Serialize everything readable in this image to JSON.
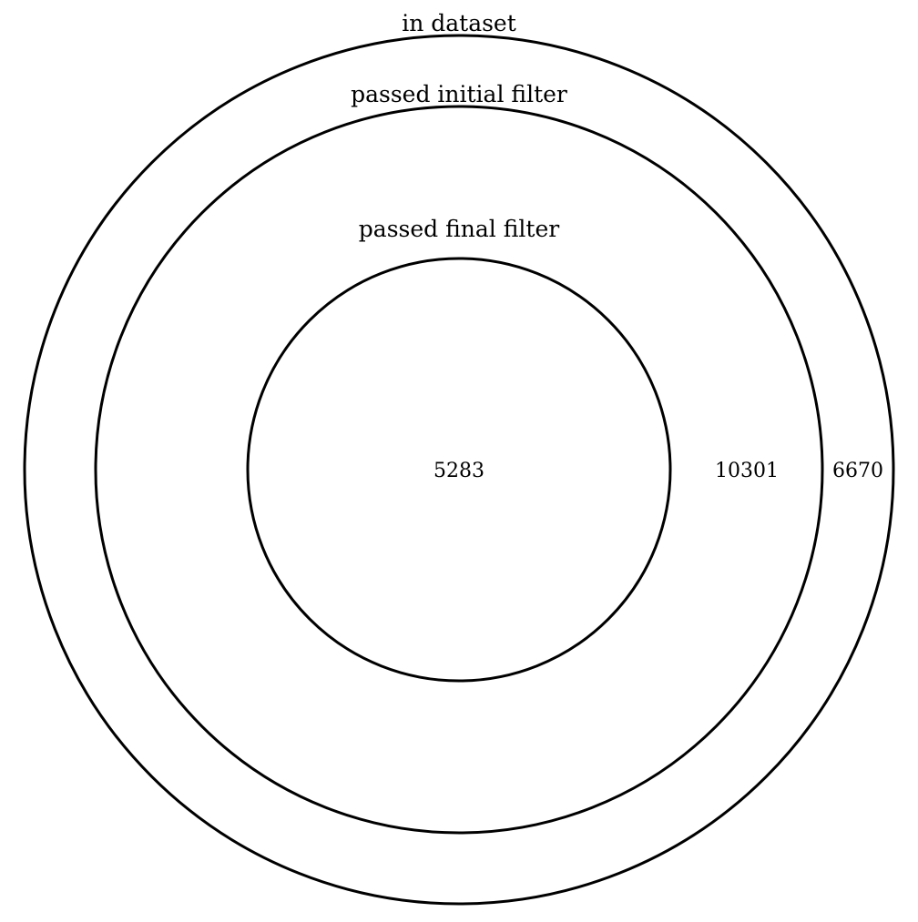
{
  "diagram": {
    "type": "nested-venn",
    "stroke_color": "#000000",
    "background_color": "#ffffff",
    "sets": [
      {
        "id": "in-dataset",
        "label": "in dataset",
        "count": "6670"
      },
      {
        "id": "passed-initial-filter",
        "label": "passed initial filter",
        "count": "10301"
      },
      {
        "id": "passed-final-filter",
        "label": "passed final filter",
        "count": "5283"
      }
    ]
  }
}
